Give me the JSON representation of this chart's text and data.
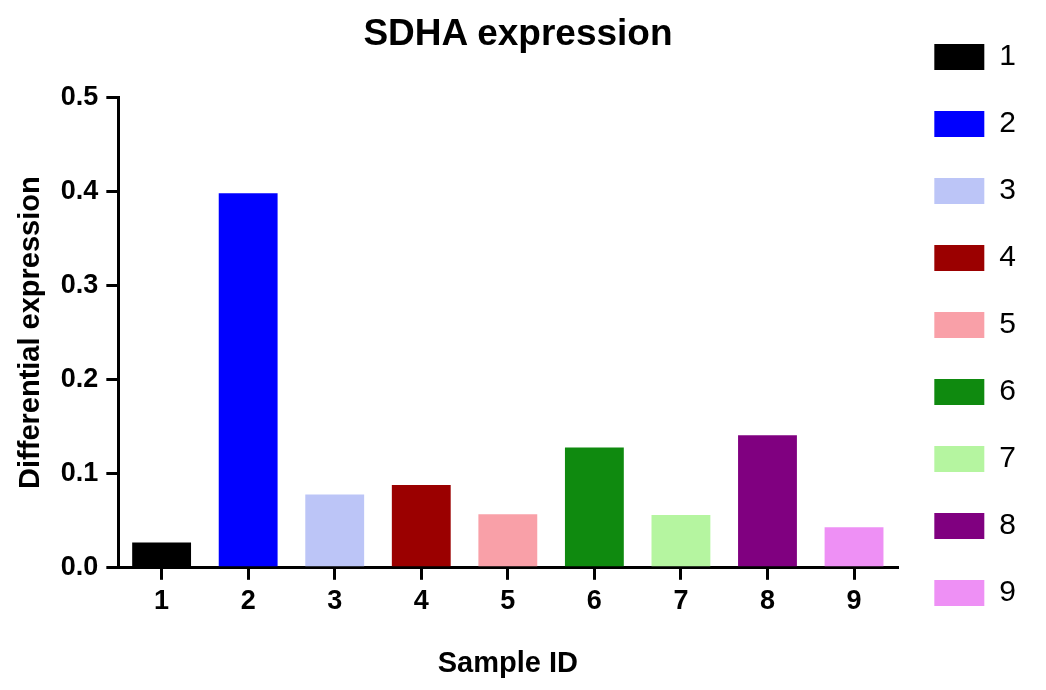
{
  "chart_data": {
    "type": "bar",
    "title": "SDHA expression",
    "xlabel": "Sample ID",
    "ylabel": "Differential expression",
    "categories": [
      "1",
      "2",
      "3",
      "4",
      "5",
      "6",
      "7",
      "8",
      "9"
    ],
    "series": [
      {
        "name": "1",
        "color": "#000000",
        "values": [
          0.027,
          null,
          null,
          null,
          null,
          null,
          null,
          null,
          null
        ]
      },
      {
        "name": "2",
        "color": "#0000ff",
        "values": [
          null,
          0.398,
          null,
          null,
          null,
          null,
          null,
          null,
          null
        ]
      },
      {
        "name": "3",
        "color": "#bcc5f7",
        "values": [
          null,
          null,
          0.078,
          null,
          null,
          null,
          null,
          null,
          null
        ]
      },
      {
        "name": "4",
        "color": "#9b0000",
        "values": [
          null,
          null,
          null,
          0.088,
          null,
          null,
          null,
          null,
          null
        ]
      },
      {
        "name": "5",
        "color": "#f9a0a8",
        "values": [
          null,
          null,
          null,
          null,
          0.057,
          null,
          null,
          null,
          null
        ]
      },
      {
        "name": "6",
        "color": "#0f8a0f",
        "values": [
          null,
          null,
          null,
          null,
          null,
          0.128,
          null,
          null,
          null
        ]
      },
      {
        "name": "7",
        "color": "#b5f5a0",
        "values": [
          null,
          null,
          null,
          null,
          null,
          null,
          0.056,
          null,
          null
        ]
      },
      {
        "name": "8",
        "color": "#800080",
        "values": [
          null,
          null,
          null,
          null,
          null,
          null,
          null,
          0.141,
          null
        ]
      },
      {
        "name": "9",
        "color": "#ee90f5",
        "values": [
          null,
          null,
          null,
          null,
          null,
          null,
          null,
          null,
          0.043
        ]
      }
    ],
    "ylim": [
      0,
      0.5
    ],
    "yticks": [
      {
        "value": 0,
        "label": "0.0"
      },
      {
        "value": 0.1,
        "label": "0.1"
      },
      {
        "value": 0.2,
        "label": "0.2"
      },
      {
        "value": 0.3,
        "label": "0.3"
      },
      {
        "value": 0.4,
        "label": "0.4"
      },
      {
        "value": 0.5,
        "label": "0.5"
      }
    ],
    "grid": false,
    "legend": "right"
  }
}
